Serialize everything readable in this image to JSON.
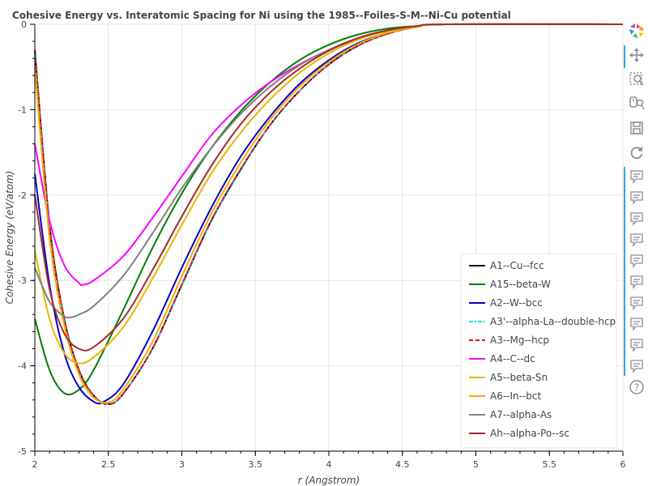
{
  "chart_data": {
    "type": "line",
    "title": "Cohesive Energy vs. Interatomic Spacing for Ni using the 1985--Foiles-S-M--Ni-Cu potential",
    "xlabel": "r (Angstrom)",
    "ylabel": "Cohesive Energy (eV/atom)",
    "xlim": [
      2,
      6
    ],
    "ylim": [
      -5,
      0
    ],
    "xticks": [
      2,
      2.5,
      3,
      3.5,
      4,
      4.5,
      5,
      5.5,
      6
    ],
    "yticks": [
      0,
      -1,
      -2,
      -3,
      -4,
      -5
    ],
    "xtick_labels": [
      "2",
      "2.5",
      "3",
      "3.5",
      "4",
      "4.5",
      "5",
      "5.5",
      "6"
    ],
    "ytick_labels": [
      "0",
      "-1",
      "-2",
      "-3",
      "-4",
      "-5"
    ],
    "grid": true,
    "legend_position": "bottom-right",
    "series": [
      {
        "name": "A1--Cu--fcc",
        "color": "#000000",
        "dash": "solid",
        "points": [
          [
            2.0,
            -0.3
          ],
          [
            2.1,
            -2.35
          ],
          [
            2.2,
            -3.45
          ],
          [
            2.3,
            -4.05
          ],
          [
            2.4,
            -4.35
          ],
          [
            2.5,
            -4.45
          ],
          [
            2.6,
            -4.33
          ],
          [
            2.8,
            -3.8
          ],
          [
            3.0,
            -3.05
          ],
          [
            3.2,
            -2.3
          ],
          [
            3.4,
            -1.7
          ],
          [
            3.6,
            -1.18
          ],
          [
            3.8,
            -0.78
          ],
          [
            4.0,
            -0.47
          ],
          [
            4.2,
            -0.25
          ],
          [
            4.4,
            -0.11
          ],
          [
            4.6,
            -0.03
          ],
          [
            4.8,
            0.0
          ],
          [
            6.0,
            0.0
          ]
        ]
      },
      {
        "name": "A15--beta-W",
        "color": "#008000",
        "dash": "solid",
        "points": [
          [
            2.0,
            -3.45
          ],
          [
            2.1,
            -4.05
          ],
          [
            2.2,
            -4.32
          ],
          [
            2.3,
            -4.28
          ],
          [
            2.4,
            -4.05
          ],
          [
            2.6,
            -3.35
          ],
          [
            2.8,
            -2.62
          ],
          [
            3.0,
            -1.98
          ],
          [
            3.2,
            -1.45
          ],
          [
            3.4,
            -1.02
          ],
          [
            3.6,
            -0.68
          ],
          [
            3.8,
            -0.42
          ],
          [
            4.0,
            -0.24
          ],
          [
            4.2,
            -0.12
          ],
          [
            4.4,
            -0.05
          ],
          [
            4.6,
            -0.02
          ],
          [
            4.8,
            0.0
          ],
          [
            6.0,
            0.0
          ]
        ]
      },
      {
        "name": "A2--W--bcc",
        "color": "#0000cd",
        "dash": "solid",
        "points": [
          [
            2.0,
            -1.75
          ],
          [
            2.1,
            -3.05
          ],
          [
            2.2,
            -3.85
          ],
          [
            2.3,
            -4.25
          ],
          [
            2.4,
            -4.42
          ],
          [
            2.47,
            -4.42
          ],
          [
            2.6,
            -4.22
          ],
          [
            2.8,
            -3.6
          ],
          [
            3.0,
            -2.85
          ],
          [
            3.2,
            -2.15
          ],
          [
            3.4,
            -1.55
          ],
          [
            3.6,
            -1.08
          ],
          [
            3.8,
            -0.7
          ],
          [
            4.0,
            -0.42
          ],
          [
            4.2,
            -0.22
          ],
          [
            4.4,
            -0.1
          ],
          [
            4.6,
            -0.03
          ],
          [
            4.8,
            0.0
          ],
          [
            6.0,
            0.0
          ]
        ]
      },
      {
        "name": "A3'--alpha-La--double-hcp",
        "color": "#00e5ee",
        "dash": "dashdot",
        "points": [
          [
            2.0,
            -0.35
          ],
          [
            2.1,
            -2.4
          ],
          [
            2.2,
            -3.47
          ],
          [
            2.3,
            -4.07
          ],
          [
            2.4,
            -4.36
          ],
          [
            2.5,
            -4.45
          ],
          [
            2.6,
            -4.33
          ],
          [
            2.8,
            -3.8
          ],
          [
            3.0,
            -3.06
          ],
          [
            3.2,
            -2.31
          ],
          [
            3.4,
            -1.71
          ],
          [
            3.6,
            -1.18
          ],
          [
            3.8,
            -0.78
          ],
          [
            4.0,
            -0.47
          ],
          [
            4.2,
            -0.25
          ],
          [
            4.4,
            -0.11
          ],
          [
            4.6,
            -0.03
          ],
          [
            4.8,
            0.0
          ],
          [
            6.0,
            0.0
          ]
        ]
      },
      {
        "name": "A3--Mg--hcp",
        "color": "#e8141e",
        "dash": "dashed",
        "points": [
          [
            2.0,
            -0.3
          ],
          [
            2.1,
            -2.35
          ],
          [
            2.2,
            -3.45
          ],
          [
            2.3,
            -4.05
          ],
          [
            2.4,
            -4.35
          ],
          [
            2.5,
            -4.45
          ],
          [
            2.6,
            -4.33
          ],
          [
            2.8,
            -3.8
          ],
          [
            3.0,
            -3.05
          ],
          [
            3.2,
            -2.3
          ],
          [
            3.4,
            -1.7
          ],
          [
            3.6,
            -1.18
          ],
          [
            3.8,
            -0.78
          ],
          [
            4.0,
            -0.47
          ],
          [
            4.2,
            -0.25
          ],
          [
            4.4,
            -0.11
          ],
          [
            4.6,
            -0.03
          ],
          [
            4.8,
            0.0
          ],
          [
            6.0,
            0.0
          ]
        ]
      },
      {
        "name": "A4--C--dc",
        "color": "#ff00ff",
        "dash": "solid",
        "points": [
          [
            2.0,
            -1.4
          ],
          [
            2.1,
            -2.3
          ],
          [
            2.2,
            -2.82
          ],
          [
            2.3,
            -3.03
          ],
          [
            2.33,
            -3.05
          ],
          [
            2.4,
            -3.0
          ],
          [
            2.6,
            -2.72
          ],
          [
            2.8,
            -2.27
          ],
          [
            3.0,
            -1.78
          ],
          [
            3.2,
            -1.3
          ],
          [
            3.4,
            -0.95
          ],
          [
            3.6,
            -0.68
          ],
          [
            3.8,
            -0.47
          ],
          [
            4.0,
            -0.3
          ],
          [
            4.2,
            -0.17
          ],
          [
            4.4,
            -0.08
          ],
          [
            4.6,
            -0.03
          ],
          [
            4.8,
            0.0
          ],
          [
            6.0,
            0.0
          ]
        ]
      },
      {
        "name": "A5--beta-Sn",
        "color": "#e6b800",
        "dash": "solid",
        "points": [
          [
            2.0,
            -2.65
          ],
          [
            2.1,
            -3.45
          ],
          [
            2.2,
            -3.85
          ],
          [
            2.3,
            -3.97
          ],
          [
            2.4,
            -3.9
          ],
          [
            2.6,
            -3.55
          ],
          [
            2.8,
            -2.98
          ],
          [
            3.0,
            -2.35
          ],
          [
            3.2,
            -1.75
          ],
          [
            3.4,
            -1.27
          ],
          [
            3.6,
            -0.88
          ],
          [
            3.8,
            -0.57
          ],
          [
            4.0,
            -0.34
          ],
          [
            4.2,
            -0.18
          ],
          [
            4.4,
            -0.08
          ],
          [
            4.6,
            -0.03
          ],
          [
            4.8,
            0.0
          ],
          [
            6.0,
            0.0
          ]
        ]
      },
      {
        "name": "A6--In--bct",
        "color": "#ffa500",
        "dash": "solid",
        "points": [
          [
            2.0,
            -0.5
          ],
          [
            2.1,
            -2.5
          ],
          [
            2.2,
            -3.52
          ],
          [
            2.3,
            -4.1
          ],
          [
            2.4,
            -4.37
          ],
          [
            2.5,
            -4.43
          ],
          [
            2.6,
            -4.28
          ],
          [
            2.8,
            -3.72
          ],
          [
            3.0,
            -2.95
          ],
          [
            3.2,
            -2.22
          ],
          [
            3.4,
            -1.62
          ],
          [
            3.6,
            -1.12
          ],
          [
            3.8,
            -0.73
          ],
          [
            4.0,
            -0.44
          ],
          [
            4.2,
            -0.23
          ],
          [
            4.4,
            -0.1
          ],
          [
            4.6,
            -0.03
          ],
          [
            4.8,
            0.0
          ],
          [
            6.0,
            0.0
          ]
        ]
      },
      {
        "name": "A7--alpha-As",
        "color": "#808080",
        "dash": "solid",
        "points": [
          [
            2.0,
            -2.85
          ],
          [
            2.1,
            -3.25
          ],
          [
            2.2,
            -3.42
          ],
          [
            2.25,
            -3.43
          ],
          [
            2.3,
            -3.4
          ],
          [
            2.4,
            -3.3
          ],
          [
            2.6,
            -2.95
          ],
          [
            2.8,
            -2.45
          ],
          [
            3.0,
            -1.92
          ],
          [
            3.2,
            -1.45
          ],
          [
            3.4,
            -1.05
          ],
          [
            3.6,
            -0.73
          ],
          [
            3.8,
            -0.48
          ],
          [
            4.0,
            -0.3
          ],
          [
            4.2,
            -0.16
          ],
          [
            4.4,
            -0.07
          ],
          [
            4.6,
            -0.02
          ],
          [
            4.8,
            0.0
          ],
          [
            6.0,
            0.0
          ]
        ]
      },
      {
        "name": "Ah--alpha-Po--sc",
        "color": "#a52a2a",
        "dash": "solid",
        "points": [
          [
            2.0,
            -2.0
          ],
          [
            2.1,
            -3.1
          ],
          [
            2.2,
            -3.62
          ],
          [
            2.3,
            -3.8
          ],
          [
            2.4,
            -3.78
          ],
          [
            2.6,
            -3.45
          ],
          [
            2.8,
            -2.88
          ],
          [
            3.0,
            -2.25
          ],
          [
            3.2,
            -1.66
          ],
          [
            3.4,
            -1.17
          ],
          [
            3.6,
            -0.8
          ],
          [
            3.8,
            -0.52
          ],
          [
            4.0,
            -0.31
          ],
          [
            4.2,
            -0.16
          ],
          [
            4.4,
            -0.07
          ],
          [
            4.6,
            -0.02
          ],
          [
            4.8,
            0.0
          ],
          [
            6.0,
            0.0
          ]
        ]
      }
    ]
  },
  "toolbar": {
    "accent_color": "#26aae1",
    "tools": [
      {
        "name": "bokeh-logo-icon",
        "active": false
      },
      {
        "name": "pan-icon",
        "active": true
      },
      {
        "name": "box-zoom-icon",
        "active": false
      },
      {
        "name": "wheel-zoom-icon",
        "active": false
      },
      {
        "name": "save-icon",
        "active": false
      },
      {
        "name": "reset-icon",
        "active": false
      },
      {
        "name": "hover-icon",
        "active": true,
        "count": 10
      },
      {
        "name": "help-icon",
        "active": false
      }
    ]
  }
}
